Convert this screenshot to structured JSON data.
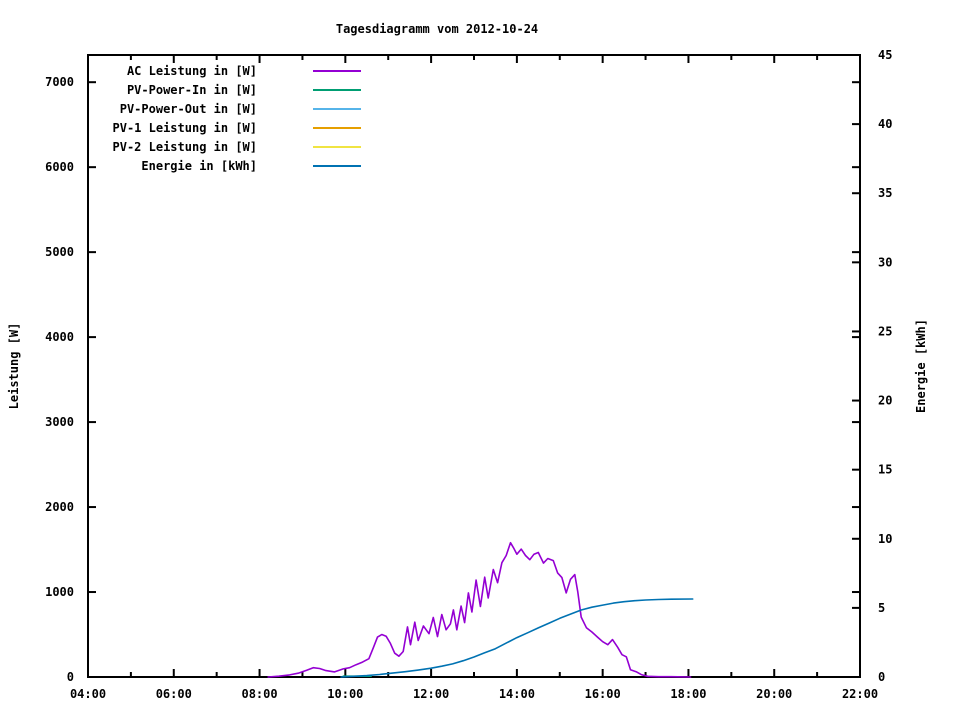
{
  "page": {
    "background": "#ffffff",
    "text_color": "#000000"
  },
  "chart_data": {
    "type": "line",
    "title": "Tagesdiagramm vom 2012-10-24",
    "legend_position": "top-left-inside",
    "grid": false,
    "x_axis": {
      "tick_labels": [
        "04:00",
        "06:00",
        "08:00",
        "10:00",
        "12:00",
        "14:00",
        "16:00",
        "18:00",
        "20:00",
        "22:00"
      ],
      "start_hour": 4,
      "end_hour": 22,
      "major_step_hours": 2,
      "minor_step_hours": 1
    },
    "left_axis": {
      "label": "Leistung [W]",
      "ticks": [
        0,
        1000,
        2000,
        3000,
        4000,
        5000,
        6000,
        7000
      ],
      "lim": [
        0,
        7320
      ]
    },
    "right_axis": {
      "label": "Energie [kWh]",
      "ticks": [
        0,
        5,
        10,
        15,
        20,
        25,
        30,
        35,
        40,
        45
      ],
      "lim": [
        0,
        45
      ]
    },
    "series": [
      {
        "name": "AC Leistung in [W]",
        "color": "#9400D3",
        "axis": "left",
        "points": [
          [
            8.2,
            0
          ],
          [
            8.45,
            10
          ],
          [
            8.7,
            25
          ],
          [
            8.9,
            45
          ],
          [
            9.1,
            80
          ],
          [
            9.25,
            110
          ],
          [
            9.4,
            100
          ],
          [
            9.55,
            75
          ],
          [
            9.75,
            60
          ],
          [
            9.95,
            95
          ],
          [
            10.1,
            110
          ],
          [
            10.25,
            145
          ],
          [
            10.4,
            175
          ],
          [
            10.55,
            215
          ],
          [
            10.65,
            340
          ],
          [
            10.75,
            470
          ],
          [
            10.85,
            500
          ],
          [
            10.95,
            480
          ],
          [
            11.05,
            395
          ],
          [
            11.15,
            280
          ],
          [
            11.25,
            245
          ],
          [
            11.35,
            300
          ],
          [
            11.45,
            590
          ],
          [
            11.52,
            380
          ],
          [
            11.62,
            645
          ],
          [
            11.7,
            430
          ],
          [
            11.82,
            600
          ],
          [
            11.95,
            510
          ],
          [
            12.05,
            700
          ],
          [
            12.15,
            475
          ],
          [
            12.25,
            735
          ],
          [
            12.35,
            555
          ],
          [
            12.45,
            625
          ],
          [
            12.52,
            790
          ],
          [
            12.6,
            555
          ],
          [
            12.7,
            835
          ],
          [
            12.78,
            640
          ],
          [
            12.87,
            990
          ],
          [
            12.95,
            765
          ],
          [
            13.05,
            1140
          ],
          [
            13.15,
            830
          ],
          [
            13.25,
            1175
          ],
          [
            13.33,
            930
          ],
          [
            13.45,
            1265
          ],
          [
            13.55,
            1110
          ],
          [
            13.65,
            1345
          ],
          [
            13.75,
            1430
          ],
          [
            13.85,
            1580
          ],
          [
            13.92,
            1520
          ],
          [
            14.0,
            1445
          ],
          [
            14.1,
            1505
          ],
          [
            14.2,
            1430
          ],
          [
            14.3,
            1380
          ],
          [
            14.4,
            1445
          ],
          [
            14.5,
            1465
          ],
          [
            14.62,
            1340
          ],
          [
            14.72,
            1395
          ],
          [
            14.85,
            1370
          ],
          [
            14.95,
            1225
          ],
          [
            15.05,
            1170
          ],
          [
            15.15,
            990
          ],
          [
            15.25,
            1150
          ],
          [
            15.35,
            1205
          ],
          [
            15.42,
            1000
          ],
          [
            15.5,
            705
          ],
          [
            15.62,
            580
          ],
          [
            15.75,
            530
          ],
          [
            15.88,
            470
          ],
          [
            16.0,
            415
          ],
          [
            16.12,
            380
          ],
          [
            16.23,
            440
          ],
          [
            16.35,
            350
          ],
          [
            16.45,
            262
          ],
          [
            16.55,
            238
          ],
          [
            16.65,
            85
          ],
          [
            16.78,
            62
          ],
          [
            16.9,
            28
          ],
          [
            17.05,
            8
          ],
          [
            17.3,
            4
          ],
          [
            17.6,
            3
          ],
          [
            18.05,
            0
          ]
        ]
      },
      {
        "name": "PV-Power-In in [W]",
        "color": "#009E73",
        "axis": "left",
        "points": [
          [
            9.95,
            10
          ],
          [
            10.6,
            10
          ]
        ]
      },
      {
        "name": "PV-Power-Out in [W]",
        "color": "#56B4E9",
        "axis": "left",
        "points": []
      },
      {
        "name": "PV-1 Leistung in [W]",
        "color": "#E69F00",
        "axis": "left",
        "points": []
      },
      {
        "name": "PV-2 Leistung in [W]",
        "color": "#F0E442",
        "axis": "left",
        "points": []
      },
      {
        "name": "Energie in [kWh]",
        "color": "#0072B2",
        "axis": "right",
        "points": [
          [
            9.9,
            0
          ],
          [
            10.2,
            0.05
          ],
          [
            10.5,
            0.1
          ],
          [
            10.8,
            0.18
          ],
          [
            11.1,
            0.28
          ],
          [
            11.4,
            0.38
          ],
          [
            11.7,
            0.5
          ],
          [
            12.0,
            0.64
          ],
          [
            12.25,
            0.78
          ],
          [
            12.5,
            0.95
          ],
          [
            12.75,
            1.18
          ],
          [
            13.0,
            1.45
          ],
          [
            13.25,
            1.75
          ],
          [
            13.5,
            2.05
          ],
          [
            13.75,
            2.45
          ],
          [
            14.0,
            2.85
          ],
          [
            14.25,
            3.2
          ],
          [
            14.5,
            3.55
          ],
          [
            14.75,
            3.9
          ],
          [
            15.0,
            4.25
          ],
          [
            15.25,
            4.55
          ],
          [
            15.5,
            4.85
          ],
          [
            15.75,
            5.05
          ],
          [
            16.0,
            5.2
          ],
          [
            16.25,
            5.35
          ],
          [
            16.5,
            5.45
          ],
          [
            16.75,
            5.52
          ],
          [
            17.0,
            5.57
          ],
          [
            17.3,
            5.61
          ],
          [
            17.6,
            5.63
          ],
          [
            18.1,
            5.64
          ]
        ]
      }
    ]
  }
}
